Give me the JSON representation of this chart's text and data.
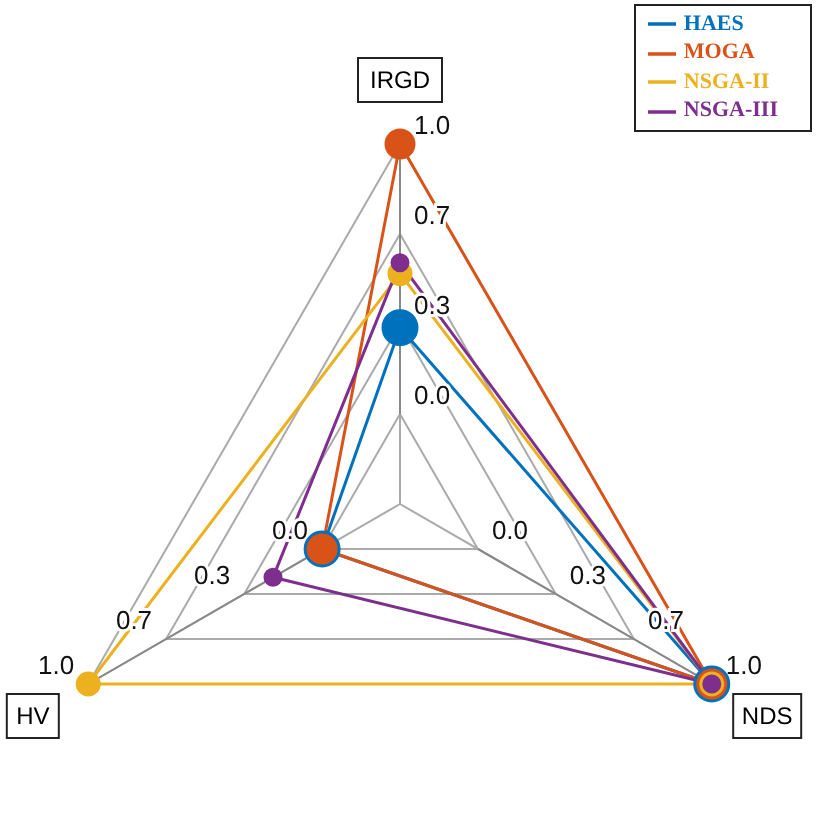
{
  "chart_data": {
    "type": "radar",
    "categories": [
      "IRGD",
      "NDS",
      "HV"
    ],
    "series": [
      {
        "name": "HAES",
        "color": "#0072bd",
        "values": [
          0.32,
          1.0,
          0.0
        ]
      },
      {
        "name": "MOGA",
        "color": "#d95319",
        "values": [
          1.0,
          1.0,
          0.0
        ]
      },
      {
        "name": "NSGA-II",
        "color": "#edb120",
        "values": [
          0.52,
          1.0,
          1.0
        ]
      },
      {
        "name": "NSGA-III",
        "color": "#7e2f8e",
        "values": [
          0.56,
          1.0,
          0.21
        ]
      }
    ],
    "ylim": [
      -0.333,
      1
    ],
    "yticks": [
      {
        "value": 0,
        "label": "0.0"
      },
      {
        "value": 0.333,
        "label": "0.3"
      },
      {
        "value": 0.667,
        "label": "0.7"
      },
      {
        "value": 1,
        "label": "1.0"
      }
    ],
    "marker": "circle",
    "legend": "top right",
    "grid": true
  }
}
